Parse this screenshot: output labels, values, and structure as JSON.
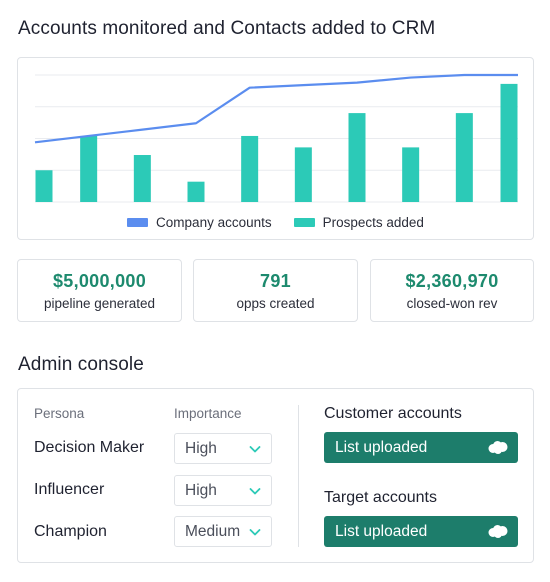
{
  "chart_section": {
    "title": "Accounts monitored and Contacts added to CRM"
  },
  "colors": {
    "line": "#5b8def",
    "bar": "#2ccab7",
    "accent_text": "#1d8a6e",
    "button": "#1d7d6b"
  },
  "chart_data": {
    "type": "bar",
    "title": "Accounts monitored and Contacts added to CRM",
    "categories": [
      "",
      "",
      "",
      "",
      "",
      "",
      "",
      "",
      "",
      ""
    ],
    "series": [
      {
        "name": "Company accounts",
        "type": "line",
        "values": [
          47,
          52,
          57,
          62,
          90,
          92,
          94,
          98,
          100,
          100
        ]
      },
      {
        "name": "Prospects added",
        "type": "bar",
        "values": [
          25,
          52,
          37,
          16,
          52,
          43,
          70,
          43,
          70,
          93
        ]
      }
    ],
    "ylim": [
      0,
      100
    ],
    "grid": true,
    "legend_position": "bottom"
  },
  "legend": {
    "items": [
      "Company accounts",
      "Prospects added"
    ]
  },
  "stats": [
    {
      "value": "$5,000,000",
      "label": "pipeline generated"
    },
    {
      "value": "791",
      "label": "opps created"
    },
    {
      "value": "$2,360,970",
      "label": "closed-won rev"
    }
  ],
  "admin": {
    "title": "Admin console",
    "persona_header": "Persona",
    "importance_header": "Importance",
    "rows": [
      {
        "persona": "Decision Maker",
        "importance": "High"
      },
      {
        "persona": "Influencer",
        "importance": "High"
      },
      {
        "persona": "Champion",
        "importance": "Medium"
      }
    ],
    "customer_accounts": {
      "title": "Customer accounts",
      "button": "List uploaded",
      "icon": "salesforce-cloud-icon"
    },
    "target_accounts": {
      "title": "Target accounts",
      "button": "List uploaded",
      "icon": "salesforce-cloud-icon"
    }
  }
}
